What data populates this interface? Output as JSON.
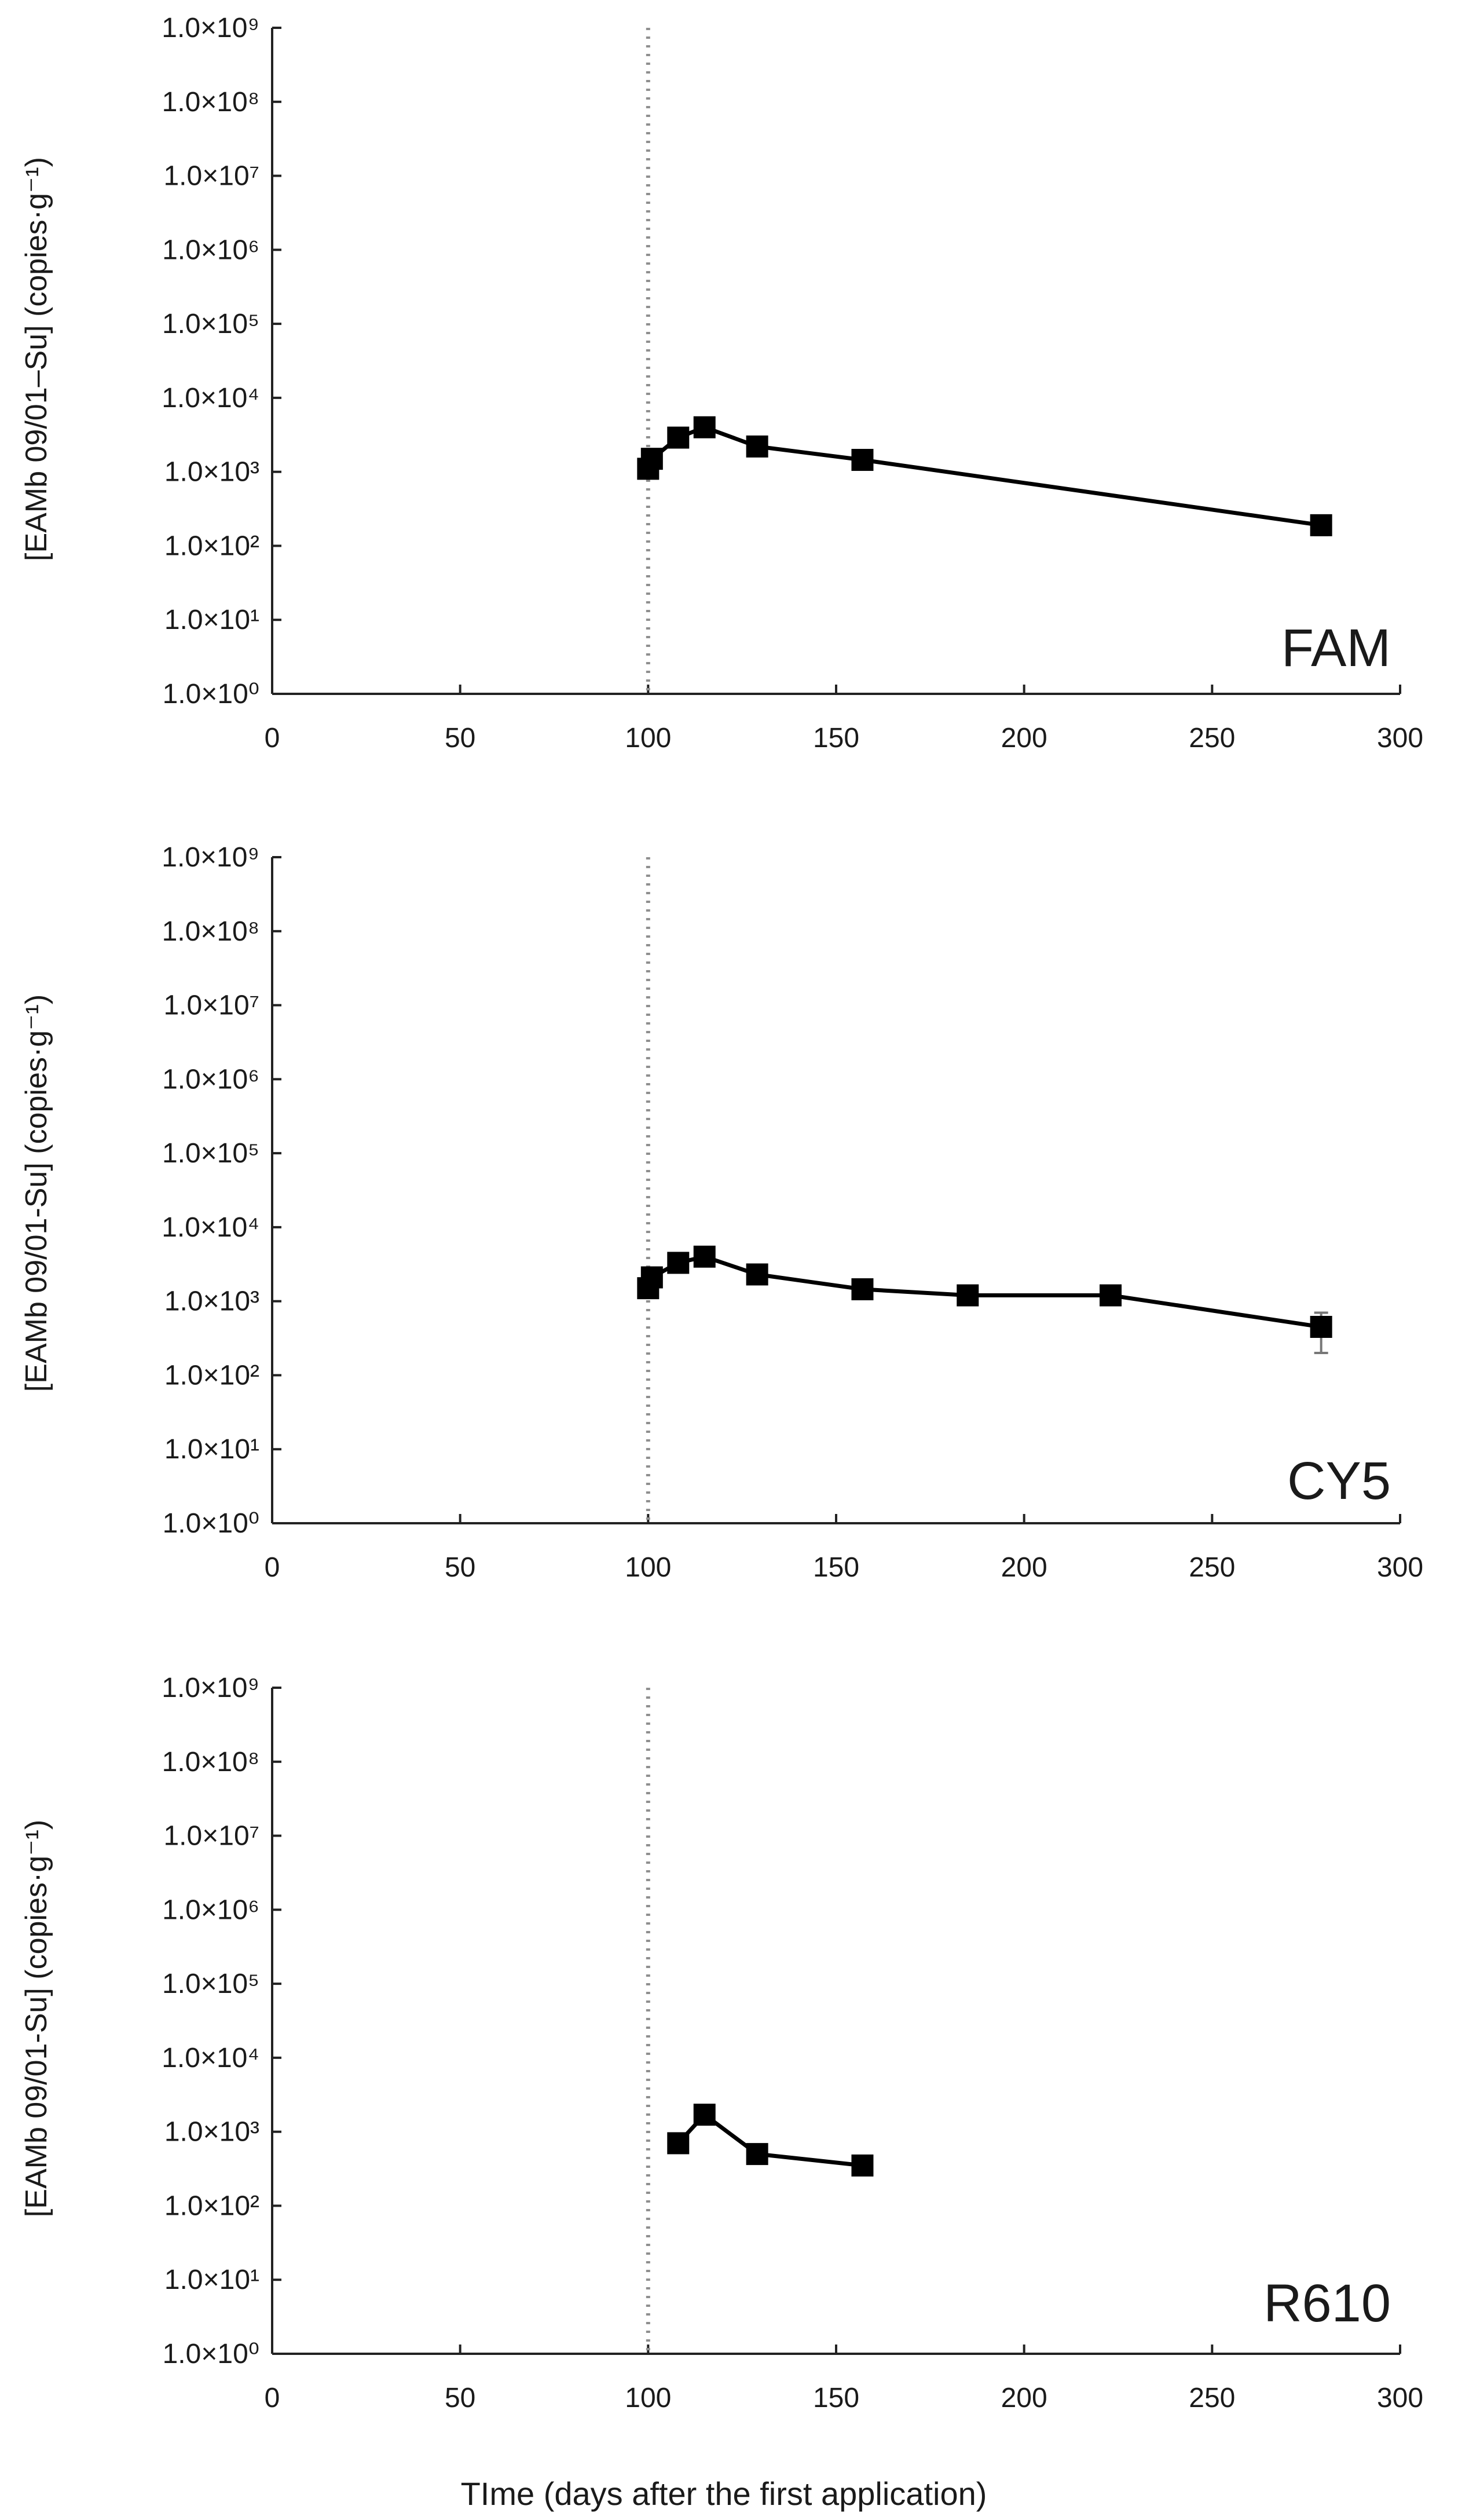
{
  "chart_data": [
    {
      "type": "line",
      "panel_label": "FAM",
      "ylabel": "[EAMb 09/01–Su] (copies·g⁻¹)",
      "xlabel": "",
      "ylog": true,
      "ylim": [
        1,
        1000000000
      ],
      "xlim": [
        0,
        300
      ],
      "x_ticks": [
        "0",
        "50",
        "100",
        "150",
        "200",
        "250",
        "300"
      ],
      "y_ticks": [
        "1.0×10⁰",
        "1.0×10¹",
        "1.0×10²",
        "1.0×10³",
        "1.0×10⁴",
        "1.0×10⁵",
        "1.0×10⁶",
        "1.0×10⁷",
        "1.0×10⁸",
        "1.0×10⁹"
      ],
      "reference_x": 100,
      "grid": false,
      "series": [
        {
          "x": [
            100,
            101,
            108,
            115,
            129,
            157,
            279
          ],
          "y": [
            1100,
            1500,
            2900,
            4000,
            2200,
            1450,
            190
          ],
          "err": [
            150,
            200,
            300,
            400,
            250,
            150,
            50
          ]
        }
      ]
    },
    {
      "type": "line",
      "panel_label": "CY5",
      "ylabel": "[EAMb 09/01-Su] (copies·g⁻¹)",
      "xlabel": "",
      "ylog": true,
      "ylim": [
        1,
        1000000000
      ],
      "xlim": [
        0,
        300
      ],
      "x_ticks": [
        "0",
        "50",
        "100",
        "150",
        "200",
        "250",
        "300"
      ],
      "y_ticks": [
        "1.0×10⁰",
        "1.0×10¹",
        "1.0×10²",
        "1.0×10³",
        "1.0×10⁴",
        "1.0×10⁵",
        "1.0×10⁶",
        "1.0×10⁷",
        "1.0×10⁸",
        "1.0×10⁹"
      ],
      "reference_x": 100,
      "grid": false,
      "series": [
        {
          "x": [
            100,
            101,
            108,
            115,
            129,
            157,
            185,
            223,
            279
          ],
          "y": [
            1500,
            2100,
            3300,
            4000,
            2300,
            1450,
            1200,
            1200,
            450
          ],
          "err": [
            200,
            250,
            300,
            400,
            250,
            150,
            120,
            120,
            250
          ]
        }
      ]
    },
    {
      "type": "line",
      "panel_label": "R610",
      "ylabel": "[EAMb 09/01-Su] (copies·g⁻¹)",
      "xlabel": "TIme (days after the first application)",
      "ylog": true,
      "ylim": [
        1,
        1000000000
      ],
      "xlim": [
        0,
        300
      ],
      "x_ticks": [
        "0",
        "50",
        "100",
        "150",
        "200",
        "250",
        "300"
      ],
      "y_ticks": [
        "1.0×10⁰",
        "1.0×10¹",
        "1.0×10²",
        "1.0×10³",
        "1.0×10⁴",
        "1.0×10⁵",
        "1.0×10⁶",
        "1.0×10⁷",
        "1.0×10⁸",
        "1.0×10⁹"
      ],
      "reference_x": 100,
      "grid": false,
      "series": [
        {
          "x": [
            108,
            115,
            129,
            157
          ],
          "y": [
            700,
            1700,
            500,
            350
          ],
          "err": [
            80,
            200,
            60,
            40
          ]
        }
      ]
    }
  ]
}
